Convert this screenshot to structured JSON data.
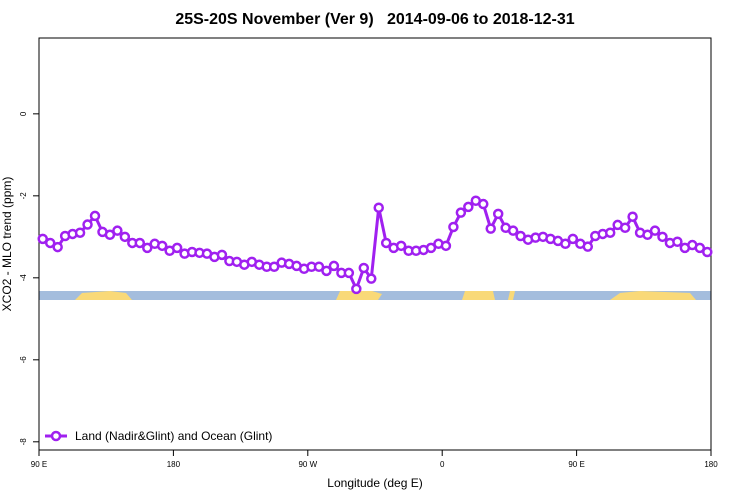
{
  "chart_data": {
    "type": "line",
    "title": "25S-20S November (Ver 9)   2014-09-06 to 2018-12-31",
    "xlabel": "Longitude (deg E)",
    "ylabel": "XCO2 - MLO trend (ppm)",
    "xlim": [
      90,
      540
    ],
    "ylim": [
      -8.2,
      1.85
    ],
    "xticks": [
      {
        "value": 90,
        "label": "90 E"
      },
      180,
      {
        "value": 270,
        "label": "90 W"
      },
      {
        "value": 360,
        "label": "0"
      },
      {
        "value": 450,
        "label": "90 E"
      },
      {
        "value": 540,
        "label": "180"
      }
    ],
    "yticks": [
      0,
      -2,
      -4,
      -6,
      -8
    ],
    "legend": "bottom-left",
    "series": [
      {
        "name": "Land (Nadir&Glint) and Ocean (Glint)",
        "color": "#a020f0",
        "x": [
          92.5,
          97.5,
          102.5,
          107.5,
          112.5,
          117.5,
          122.5,
          127.5,
          132.5,
          137.5,
          142.5,
          147.5,
          152.5,
          157.5,
          162.5,
          167.5,
          172.5,
          177.5,
          182.5,
          187.5,
          192.5,
          197.5,
          202.5,
          207.5,
          212.5,
          217.5,
          222.5,
          227.5,
          232.5,
          237.5,
          242.5,
          247.5,
          252.5,
          257.5,
          262.5,
          267.5,
          272.5,
          277.5,
          282.5,
          287.5,
          292.5,
          297.5,
          302.5,
          307.5,
          312.5,
          317.5,
          322.5,
          327.5,
          332.5,
          337.5,
          342.5,
          347.5,
          352.5,
          357.5,
          362.5,
          367.5,
          372.5,
          377.5,
          382.5,
          387.5,
          392.5,
          397.5,
          402.5,
          407.5,
          412.5,
          417.5,
          422.5,
          427.5,
          432.5,
          437.5,
          442.5,
          447.5,
          452.5,
          457.5,
          462.5,
          467.5,
          472.5,
          477.5,
          482.5,
          487.5,
          492.5,
          497.5,
          502.5,
          507.5,
          512.5,
          517.5,
          522.5,
          527.5,
          532.5,
          537.5
        ],
        "values": [
          -3.05,
          -3.15,
          -3.25,
          -2.98,
          -2.93,
          -2.9,
          -2.7,
          -2.49,
          -2.88,
          -2.95,
          -2.85,
          -3.0,
          -3.15,
          -3.15,
          -3.27,
          -3.17,
          -3.22,
          -3.34,
          -3.27,
          -3.41,
          -3.37,
          -3.39,
          -3.41,
          -3.49,
          -3.44,
          -3.59,
          -3.61,
          -3.68,
          -3.61,
          -3.68,
          -3.73,
          -3.73,
          -3.63,
          -3.66,
          -3.71,
          -3.78,
          -3.73,
          -3.73,
          -3.83,
          -3.71,
          -3.88,
          -3.88,
          -4.27,
          -3.76,
          -4.02,
          -2.29,
          -3.15,
          -3.27,
          -3.22,
          -3.34,
          -3.34,
          -3.32,
          -3.27,
          -3.17,
          -3.22,
          -2.76,
          -2.41,
          -2.27,
          -2.12,
          -2.2,
          -2.8,
          -2.44,
          -2.78,
          -2.85,
          -2.98,
          -3.07,
          -3.02,
          -3.0,
          -3.05,
          -3.1,
          -3.17,
          -3.05,
          -3.17,
          -3.24,
          -2.98,
          -2.93,
          -2.9,
          -2.71,
          -2.78,
          -2.51,
          -2.9,
          -2.95,
          -2.85,
          -3.0,
          -3.15,
          -3.12,
          -3.27,
          -3.2,
          -3.27,
          -3.37
        ]
      }
    ]
  }
}
